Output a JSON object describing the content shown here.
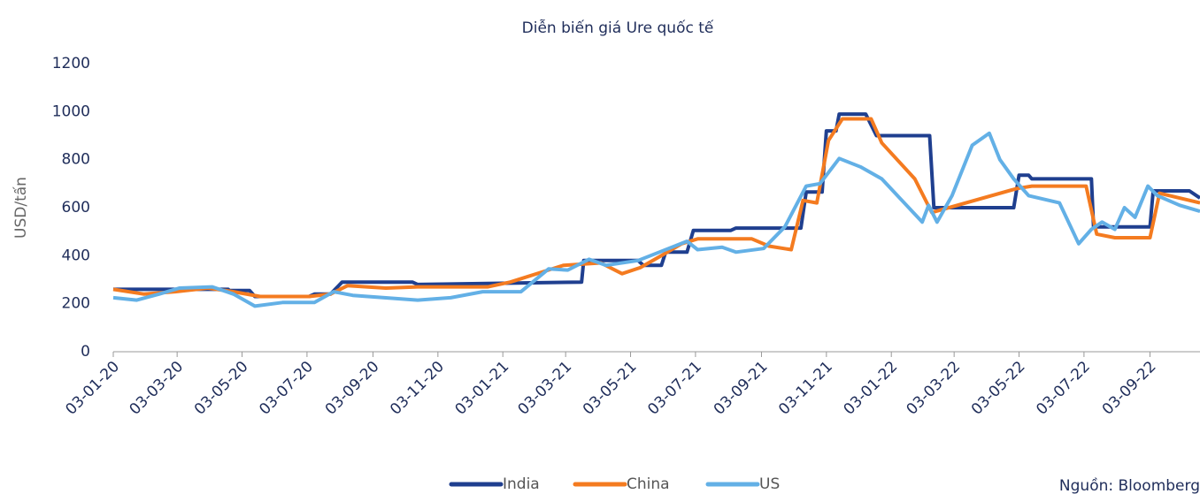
{
  "chart_data": {
    "type": "line",
    "title": "Diễn biến giá Ure quốc tế",
    "y_label": "USD/tấn",
    "source": "Nguồn: Bloomberg",
    "xlim": [
      "03-01-20",
      "20-10-22"
    ],
    "xticks": [
      "03-01-20",
      "03-03-20",
      "03-05-20",
      "03-07-20",
      "03-09-20",
      "03-11-20",
      "03-01-21",
      "03-03-21",
      "03-05-21",
      "03-07-21",
      "03-09-21",
      "03-11-21",
      "03-01-22",
      "03-03-22",
      "03-05-22",
      "03-07-22",
      "03-09-22"
    ],
    "ylim": [
      0,
      1200
    ],
    "yticks": [
      0,
      200,
      400,
      600,
      800,
      1000,
      1200
    ],
    "series": [
      {
        "name": "India",
        "color": "#1f3f8f",
        "x": [
          "03-01-20",
          "20-04-20",
          "21-04-20",
          "10-05-20",
          "15-05-20",
          "05-07-20",
          "10-07-20",
          "25-07-20",
          "05-08-20",
          "10-10-20",
          "15-10-20",
          "18-03-21",
          "20-03-21",
          "10-05-21",
          "15-05-21",
          "01-06-21",
          "05-06-21",
          "25-06-21",
          "01-07-21",
          "05-08-21",
          "10-08-21",
          "10-10-21",
          "15-10-21",
          "30-10-21",
          "03-11-21",
          "12-11-21",
          "15-11-21",
          "10-12-21",
          "20-12-21",
          "08-02-22",
          "12-02-22",
          "28-04-22",
          "03-05-22",
          "12-05-22",
          "15-05-22",
          "10-07-22",
          "12-07-22",
          "03-09-22",
          "06-09-22",
          "10-10-22",
          "20-10-22"
        ],
        "values": [
          260,
          260,
          255,
          255,
          230,
          230,
          240,
          240,
          290,
          290,
          280,
          290,
          380,
          380,
          360,
          360,
          415,
          415,
          505,
          505,
          515,
          515,
          665,
          665,
          920,
          920,
          990,
          990,
          900,
          900,
          600,
          600,
          735,
          735,
          720,
          720,
          520,
          520,
          670,
          670,
          640
        ]
      },
      {
        "name": "China",
        "color": "#f47b20",
        "x": [
          "03-01-20",
          "01-02-20",
          "01-03-20",
          "01-04-20",
          "25-04-20",
          "20-05-20",
          "05-07-20",
          "25-07-20",
          "10-08-20",
          "15-09-20",
          "15-10-20",
          "20-12-20",
          "10-01-21",
          "01-03-21",
          "05-04-21",
          "25-04-21",
          "12-05-21",
          "01-06-21",
          "20-06-21",
          "05-07-21",
          "25-08-21",
          "10-09-21",
          "01-10-21",
          "12-10-21",
          "25-10-21",
          "05-11-21",
          "18-11-21",
          "15-12-21",
          "25-12-21",
          "25-01-22",
          "10-02-22",
          "01-05-22",
          "15-05-22",
          "05-07-22",
          "15-07-22",
          "01-08-22",
          "03-09-22",
          "12-09-22",
          "20-10-22"
        ],
        "values": [
          260,
          240,
          250,
          265,
          250,
          230,
          230,
          240,
          275,
          265,
          270,
          270,
          290,
          360,
          370,
          325,
          350,
          400,
          450,
          470,
          470,
          440,
          425,
          630,
          620,
          880,
          970,
          970,
          870,
          720,
          580,
          680,
          690,
          690,
          490,
          475,
          475,
          660,
          620
        ]
      },
      {
        "name": "US",
        "color": "#63b0e6",
        "x": [
          "03-01-20",
          "25-01-20",
          "15-02-20",
          "05-03-20",
          "05-04-20",
          "25-04-20",
          "15-05-20",
          "10-06-20",
          "10-07-20",
          "28-07-20",
          "15-08-20",
          "15-10-20",
          "15-11-20",
          "15-12-20",
          "20-01-21",
          "15-02-21",
          "05-03-21",
          "25-03-21",
          "10-04-21",
          "10-05-21",
          "25-06-21",
          "05-07-21",
          "28-07-21",
          "10-08-21",
          "05-09-21",
          "25-09-21",
          "15-10-21",
          "28-10-21",
          "15-11-21",
          "05-12-21",
          "25-12-21",
          "01-02-22",
          "07-02-22",
          "15-02-22",
          "01-03-22",
          "20-03-22",
          "05-04-22",
          "15-04-22",
          "28-04-22",
          "12-05-22",
          "10-06-22",
          "28-06-22",
          "10-07-22",
          "20-07-22",
          "01-08-22",
          "10-08-22",
          "20-08-22",
          "01-09-22",
          "10-09-22",
          "01-10-22",
          "20-10-22"
        ],
        "values": [
          225,
          215,
          240,
          265,
          270,
          240,
          190,
          205,
          205,
          250,
          235,
          215,
          225,
          250,
          250,
          345,
          340,
          385,
          360,
          380,
          460,
          425,
          435,
          415,
          430,
          520,
          690,
          700,
          805,
          770,
          720,
          540,
          610,
          540,
          650,
          860,
          910,
          800,
          720,
          650,
          620,
          450,
          510,
          540,
          510,
          600,
          560,
          690,
          650,
          610,
          585
        ]
      }
    ]
  }
}
